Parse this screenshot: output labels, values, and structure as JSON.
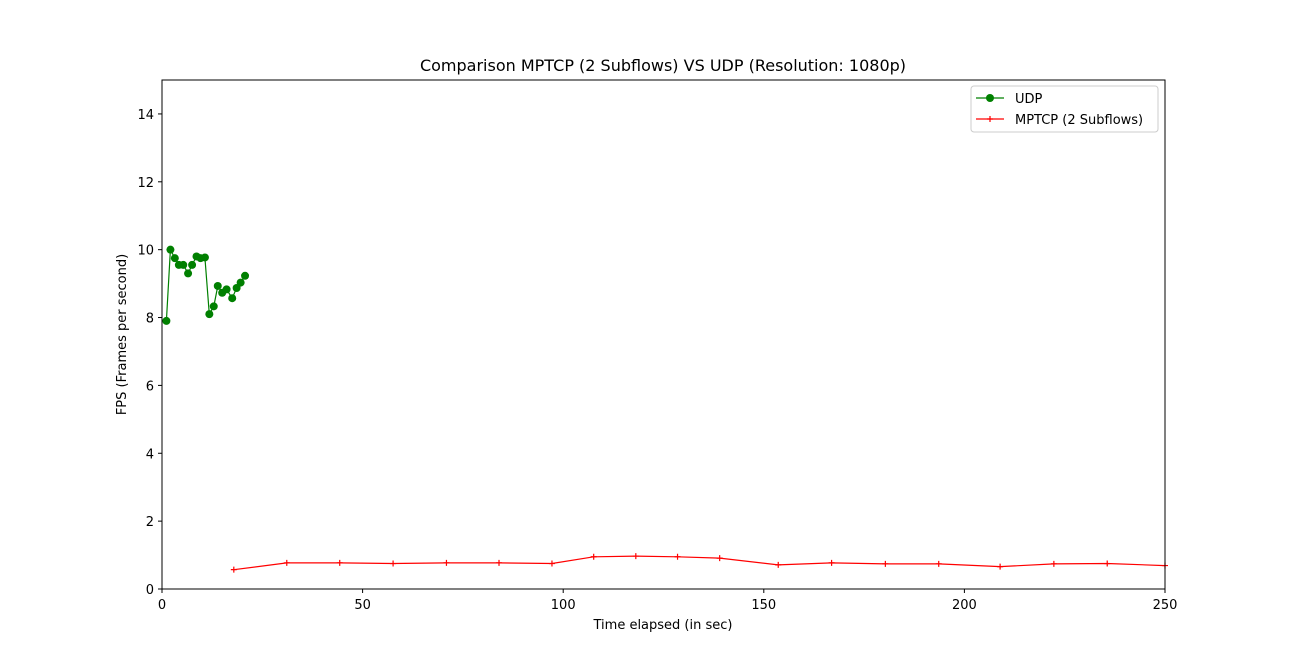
{
  "chart_data": {
    "type": "line",
    "title": "Comparison MPTCP (2 Subflows) VS UDP (Resolution: 1080p)",
    "xlabel": "Time elapsed (in sec)",
    "ylabel": "FPS (Frames per second)",
    "xlim": [
      0,
      250
    ],
    "ylim": [
      0,
      15
    ],
    "xticks": [
      0,
      50,
      100,
      150,
      200,
      250
    ],
    "yticks": [
      0,
      2,
      4,
      6,
      8,
      10,
      12,
      14
    ],
    "grid": false,
    "legend": "top-right",
    "series": [
      {
        "name": "UDP",
        "color": "#008000",
        "marker": "circle",
        "x": [
          1.1,
          2.1,
          3.2,
          4.2,
          5.3,
          6.5,
          7.5,
          8.6,
          9.6,
          10.7,
          11.8,
          12.9,
          13.9,
          15.0,
          16.1,
          17.5,
          18.6,
          19.6,
          20.7
        ],
        "y": [
          7.9,
          10.0,
          9.75,
          9.55,
          9.55,
          9.3,
          9.55,
          9.8,
          9.75,
          9.77,
          8.1,
          8.33,
          8.93,
          8.73,
          8.83,
          8.57,
          8.87,
          9.03,
          9.23
        ]
      },
      {
        "name": "MPTCP (2 Subflows)",
        "color": "#ff0000",
        "marker": "plus",
        "x": [
          17.9,
          31.1,
          44.3,
          57.6,
          70.9,
          84.0,
          97.2,
          107.6,
          118.1,
          128.5,
          139.0,
          153.6,
          166.9,
          180.3,
          193.6,
          208.9,
          222.3,
          235.6,
          250.0
        ],
        "y": [
          0.57,
          0.77,
          0.77,
          0.75,
          0.77,
          0.77,
          0.75,
          0.95,
          0.97,
          0.95,
          0.91,
          0.71,
          0.77,
          0.74,
          0.74,
          0.66,
          0.74,
          0.75,
          0.69
        ]
      }
    ]
  }
}
